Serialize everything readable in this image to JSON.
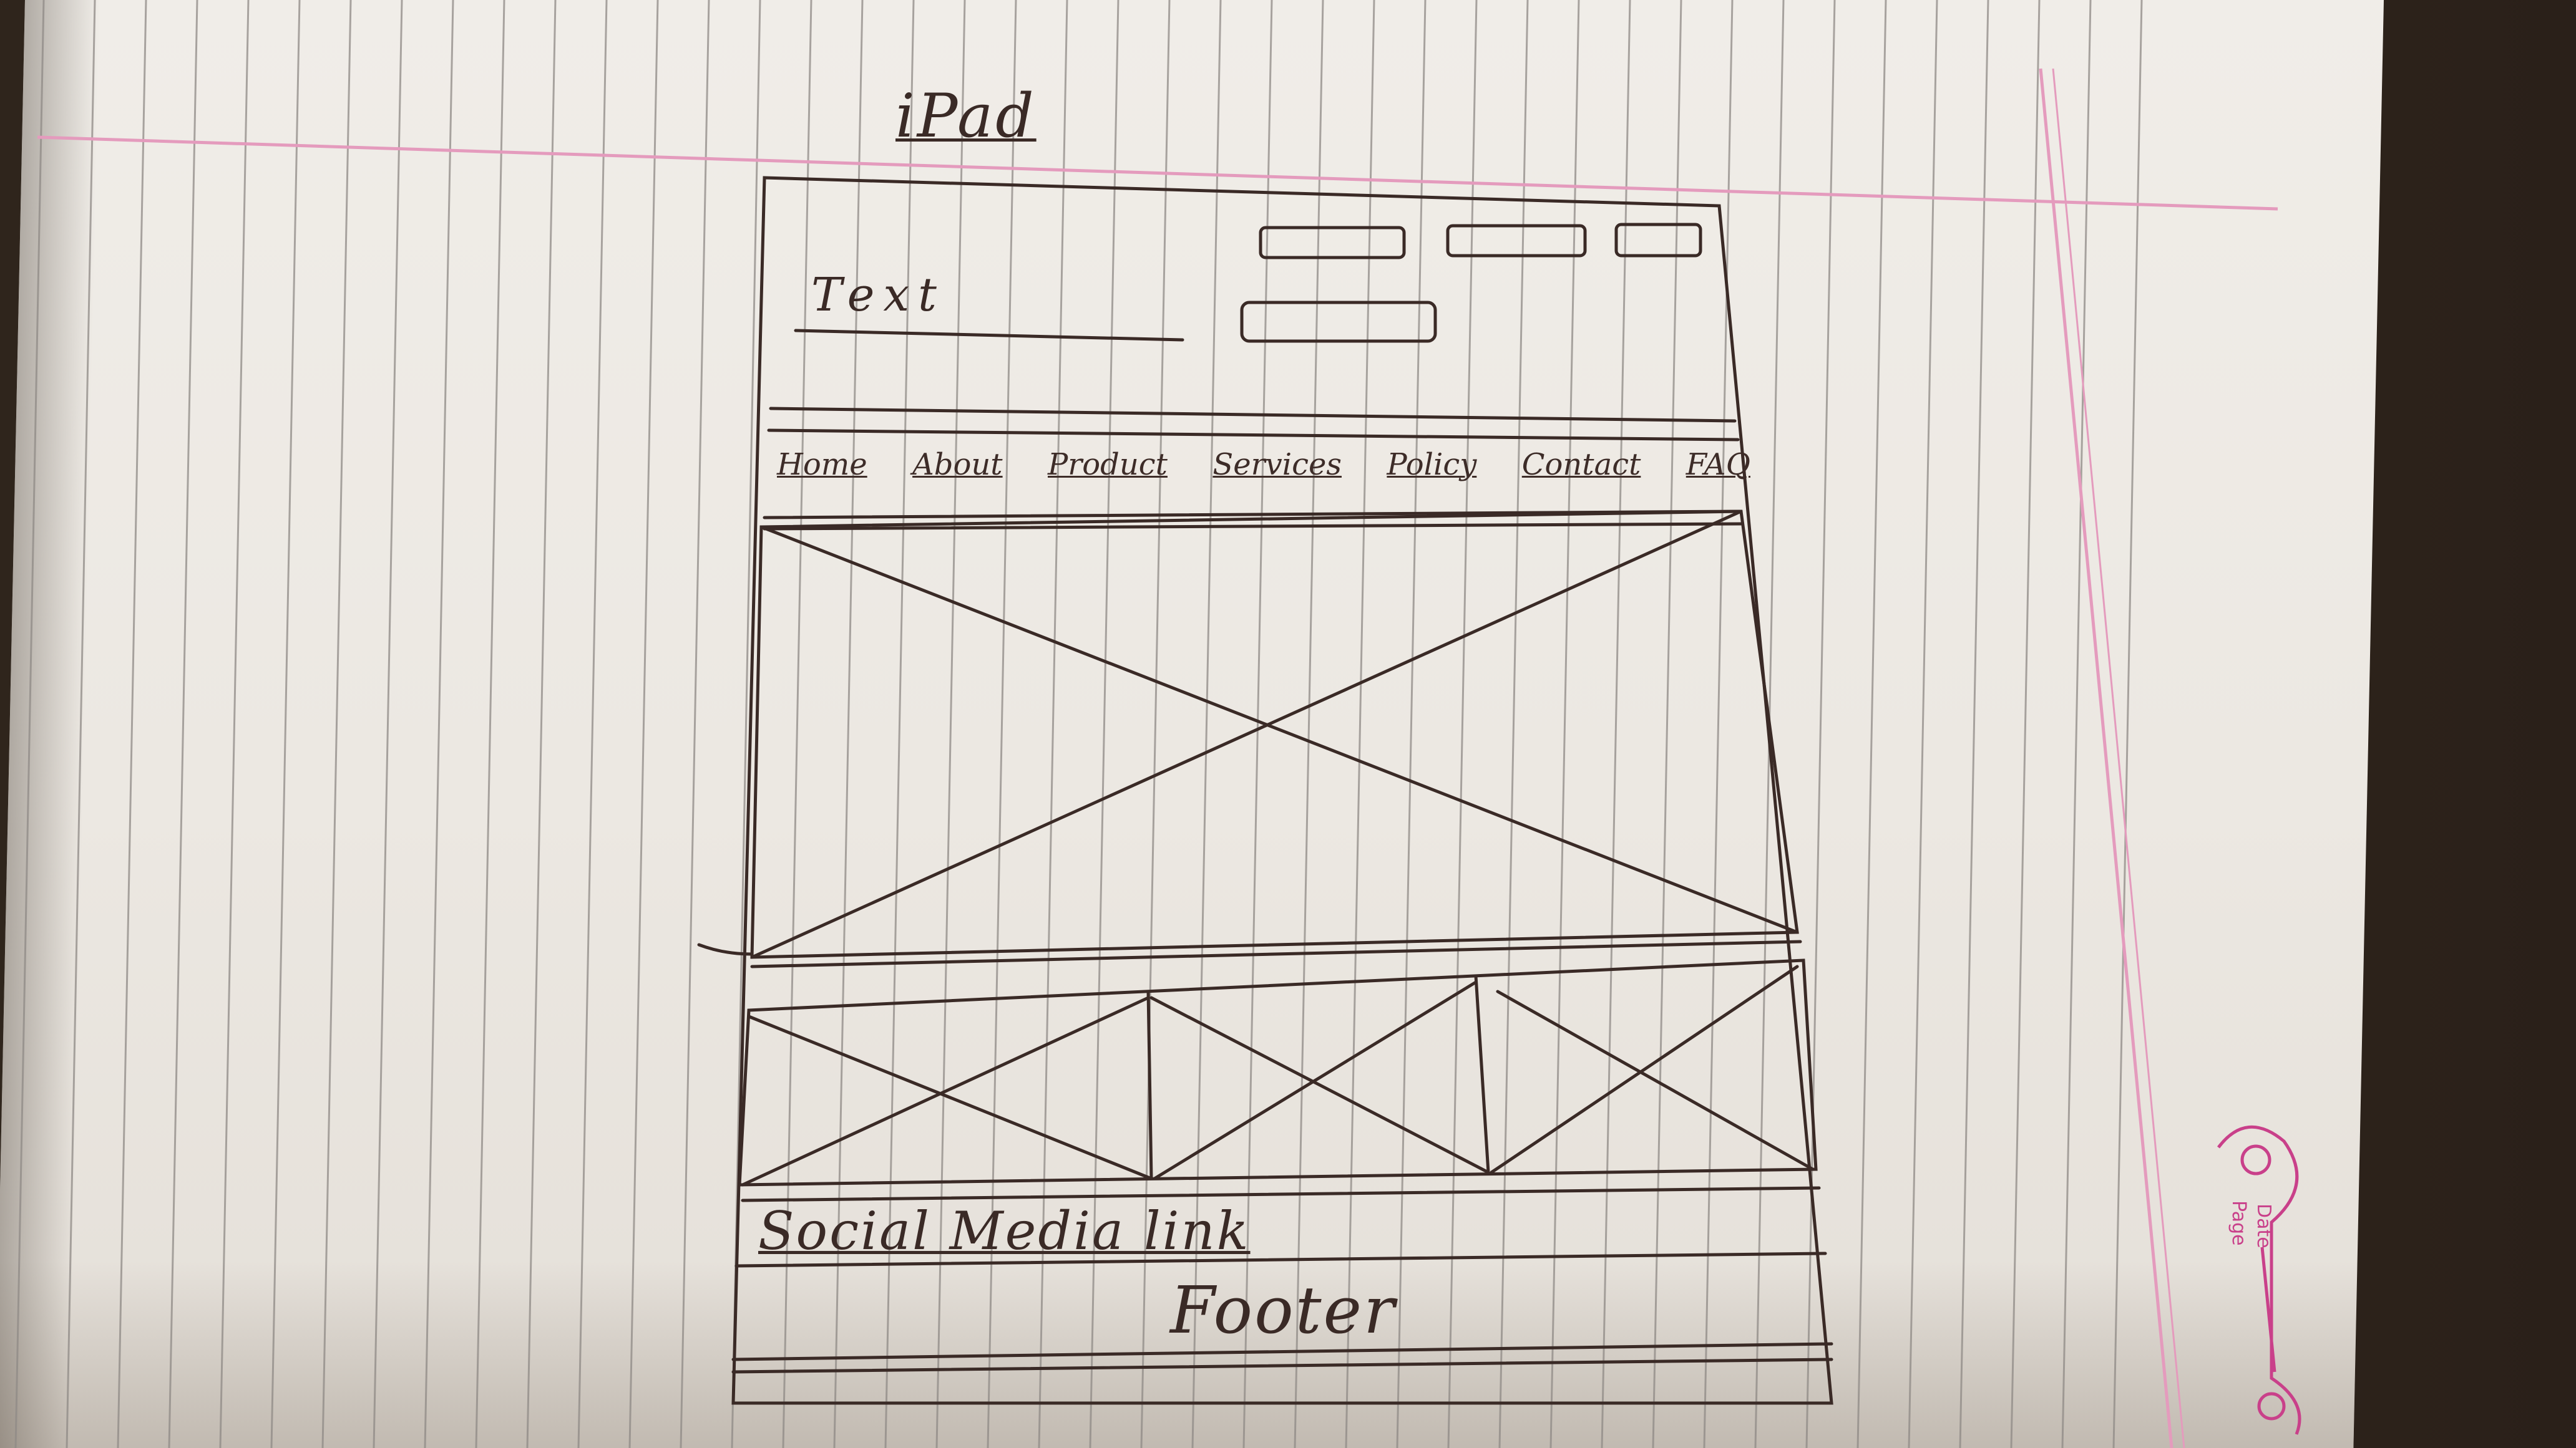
{
  "page_heading": "iPad",
  "header": {
    "logo_text": "Text",
    "top_boxes": [
      "input-box",
      "input-box",
      "button-box"
    ],
    "search_box": "input-box"
  },
  "nav": {
    "items": [
      "Home",
      "About",
      "Product",
      "Services",
      "Policy",
      "Contact",
      "FAQ"
    ]
  },
  "footer": {
    "social_label": "Social Media link",
    "footer_label": "Footer"
  },
  "notebook_stamp": {
    "date_label": "Date",
    "page_label": "Page"
  },
  "colors": {
    "paper": "#ece8e2",
    "ruled_line": "#8f8a86",
    "margin_line": "#e49bbd",
    "ink": "#3a2a26",
    "stamp": "#c9408a"
  }
}
